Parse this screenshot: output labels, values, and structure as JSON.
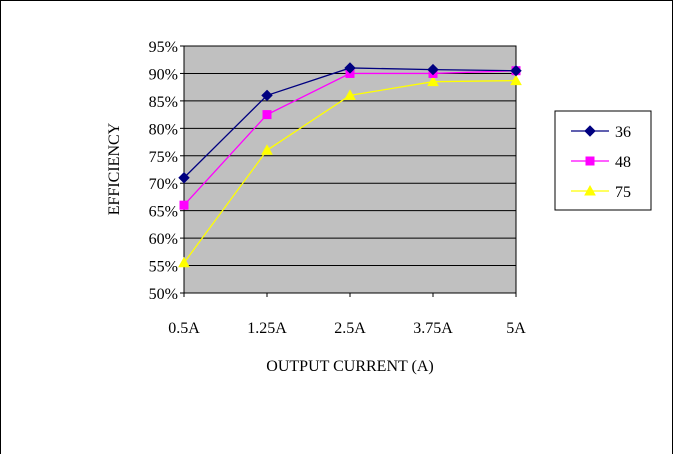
{
  "chart_data": {
    "type": "line",
    "title": "",
    "xlabel": "OUTPUT CURRENT (A)",
    "ylabel": "EFFICIENCY",
    "categories": [
      "0.5A",
      "1.25A",
      "2.5A",
      "3.75A",
      "5A"
    ],
    "yticks": [
      "50%",
      "55%",
      "60%",
      "65%",
      "70%",
      "75%",
      "80%",
      "85%",
      "90%",
      "95%"
    ],
    "ylim": [
      50,
      95
    ],
    "grid": true,
    "legend_position": "right",
    "plot_background": "#c0c0c0",
    "series": [
      {
        "name": "36",
        "color": "#000080",
        "marker": "diamond",
        "values": [
          71,
          86,
          91,
          90.7,
          90.5
        ]
      },
      {
        "name": "48",
        "color": "#ff00ff",
        "marker": "square",
        "values": [
          66,
          82.5,
          90,
          90,
          90.5
        ]
      },
      {
        "name": "75",
        "color": "#ffff00",
        "marker": "triangle",
        "values": [
          55.5,
          76,
          86,
          88.5,
          88.7
        ]
      }
    ]
  }
}
